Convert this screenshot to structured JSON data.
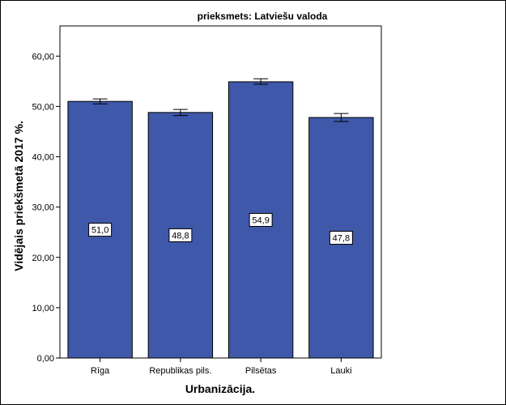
{
  "chart_data": {
    "type": "bar",
    "title": "prieksmets: Latviešu valoda",
    "xlabel": "Urbanizācija.",
    "ylabel": "Vidējais priekšmetā 2017 %.",
    "categories": [
      "Rīga",
      "Republikas pils.",
      "Pilsētas",
      "Lauki"
    ],
    "values": [
      51.0,
      48.8,
      54.9,
      47.8
    ],
    "value_labels": [
      "51,0",
      "48,8",
      "54,9",
      "47,8"
    ],
    "error_bars": [
      {
        "low": 50.5,
        "high": 51.5
      },
      {
        "low": 48.2,
        "high": 49.4
      },
      {
        "low": 54.4,
        "high": 55.5
      },
      {
        "low": 47.0,
        "high": 48.6
      }
    ],
    "ylim": [
      0,
      66
    ],
    "yticks": [
      0,
      10,
      20,
      30,
      40,
      50,
      60
    ],
    "ytick_labels": [
      "0,00",
      "10,00",
      "20,00",
      "30,00",
      "40,00",
      "50,00",
      "60,00"
    ],
    "bar_color": "#3f58a9",
    "grid": false,
    "legend": "none"
  }
}
